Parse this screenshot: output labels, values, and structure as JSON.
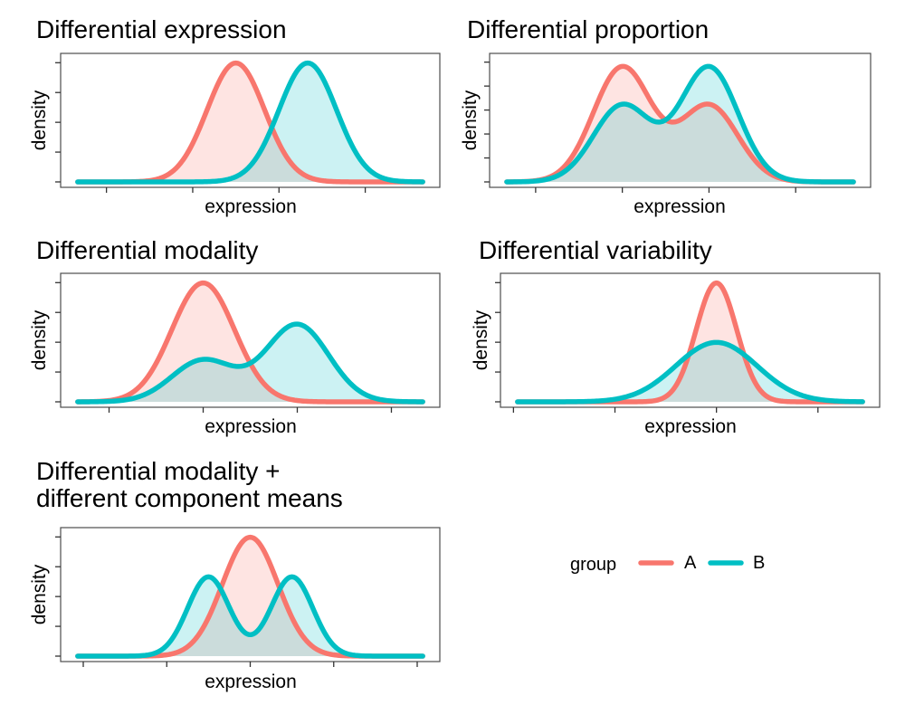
{
  "colors": {
    "A": "#F8766D",
    "B": "#00BFC4"
  },
  "legend": {
    "title": "group",
    "entries": [
      "A",
      "B"
    ]
  },
  "chart_data": [
    {
      "type": "area",
      "title": [
        "Differential expression"
      ],
      "xlabel": "expression",
      "ylabel": "density",
      "xlim": [
        -4,
        8
      ],
      "xticks": [
        -3,
        0,
        3,
        6
      ],
      "yticks": [
        0,
        0.1,
        0.2,
        0.3,
        0.4
      ],
      "ylim": [
        0,
        0.41
      ],
      "series": [
        {
          "name": "A",
          "components": [
            {
              "w": 1,
              "mu": 1.5,
              "sd": 1
            }
          ]
        },
        {
          "name": "B",
          "components": [
            {
              "w": 1,
              "mu": 4.0,
              "sd": 1
            }
          ]
        }
      ]
    },
    {
      "type": "area",
      "title": [
        "Differential proportion"
      ],
      "xlabel": "expression",
      "ylabel": "density",
      "xlim": [
        -4,
        8
      ],
      "xticks": [
        -3,
        0,
        3,
        6
      ],
      "yticks": [
        0,
        0.05,
        0.1,
        0.15,
        0.2,
        0.25
      ],
      "ylim": [
        0,
        0.255
      ],
      "series": [
        {
          "name": "A",
          "components": [
            {
              "w": 0.6,
              "mu": 0,
              "sd": 1
            },
            {
              "w": 0.4,
              "mu": 3,
              "sd": 1
            }
          ]
        },
        {
          "name": "B",
          "components": [
            {
              "w": 0.4,
              "mu": 0,
              "sd": 1
            },
            {
              "w": 0.6,
              "mu": 3,
              "sd": 1
            }
          ]
        }
      ]
    },
    {
      "type": "area",
      "title": [
        "Differential modality"
      ],
      "xlabel": "expression",
      "ylabel": "density",
      "xlim": [
        -4,
        7
      ],
      "xticks": [
        -3,
        0,
        3,
        6
      ],
      "yticks": [
        0,
        0.1,
        0.2,
        0.3,
        0.4
      ],
      "ylim": [
        0,
        0.41
      ],
      "series": [
        {
          "name": "A",
          "components": [
            {
              "w": 1,
              "mu": 0,
              "sd": 1
            }
          ]
        },
        {
          "name": "B",
          "components": [
            {
              "w": 0.35,
              "mu": 0,
              "sd": 1
            },
            {
              "w": 0.65,
              "mu": 3,
              "sd": 1
            }
          ]
        }
      ]
    },
    {
      "type": "area",
      "title": [
        "Differential variability"
      ],
      "xlabel": "expression",
      "ylabel": "density",
      "xlim": [
        -9.8,
        7.2
      ],
      "xticks": [
        -10,
        -5,
        0,
        5
      ],
      "yticks": [
        0,
        0.1,
        0.2,
        0.3,
        0.4
      ],
      "ylim": [
        0,
        0.41
      ],
      "series": [
        {
          "name": "A",
          "components": [
            {
              "w": 1,
              "mu": 0,
              "sd": 1
            }
          ]
        },
        {
          "name": "B",
          "components": [
            {
              "w": 1,
              "mu": 0,
              "sd": 2
            }
          ]
        }
      ]
    },
    {
      "type": "area",
      "title": [
        "Differential modality +",
        "different component means"
      ],
      "xlabel": "expression",
      "ylabel": "density",
      "xlim": [
        -6.2,
        6.2
      ],
      "xticks": [
        -6,
        -3,
        0,
        3,
        6
      ],
      "yticks": [
        0,
        0.1,
        0.2,
        0.3,
        0.4
      ],
      "ylim": [
        0,
        0.41
      ],
      "series": [
        {
          "name": "A",
          "components": [
            {
              "w": 1,
              "mu": 0,
              "sd": 1
            }
          ]
        },
        {
          "name": "B",
          "components": [
            {
              "w": 0.5,
              "mu": -1.5,
              "sd": 0.75
            },
            {
              "w": 0.5,
              "mu": 1.5,
              "sd": 0.75
            }
          ]
        }
      ]
    }
  ]
}
